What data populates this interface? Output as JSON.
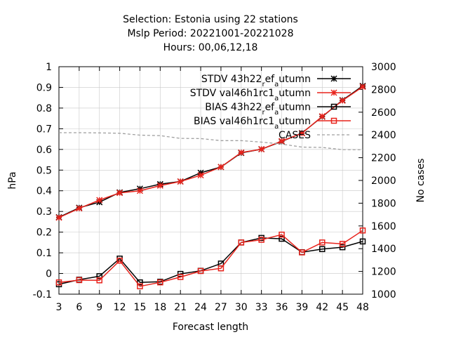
{
  "chart_data": {
    "type": "line",
    "title_lines": [
      "Selection: Estonia using     22 stations",
      "Mslp   Period: 20221001-20221028",
      "Hours:  00,06,12,18"
    ],
    "xlabel": "Forecast length",
    "ylabel": "hPa",
    "y2label": "No cases",
    "x": [
      3,
      6,
      9,
      12,
      15,
      18,
      21,
      24,
      27,
      30,
      33,
      36,
      39,
      42,
      45,
      48
    ],
    "xlim": [
      3,
      48
    ],
    "ylim": [
      -0.1,
      1.0
    ],
    "y2lim": [
      1000,
      3000
    ],
    "xticks": [
      "3",
      "6",
      "9",
      "12",
      "15",
      "18",
      "21",
      "24",
      "27",
      "30",
      "33",
      "36",
      "39",
      "42",
      "45",
      "48"
    ],
    "yticks": [
      "-0.1",
      "0",
      "0.1",
      "0.2",
      "0.3",
      "0.4",
      "0.5",
      "0.6",
      "0.7",
      "0.8",
      "0.9",
      "1"
    ],
    "y2ticks": [
      "1000",
      "1200",
      "1400",
      "1600",
      "1800",
      "2000",
      "2200",
      "2400",
      "2600",
      "2800",
      "3000"
    ],
    "legend_position": "top-right",
    "series": [
      {
        "name": "STDV 43h22_ref_autumn",
        "legend_parts": [
          [
            "STDV 43h22",
            0
          ],
          [
            "r",
            1
          ],
          [
            "ef",
            0
          ],
          [
            "a",
            1
          ],
          [
            "utumn",
            0
          ]
        ],
        "color": "#000000",
        "marker": "star",
        "axis": "y1",
        "values": [
          0.272,
          0.318,
          0.345,
          0.392,
          0.41,
          0.432,
          0.445,
          0.487,
          0.515,
          0.583,
          0.601,
          0.638,
          0.679,
          0.758,
          0.838,
          0.907
        ]
      },
      {
        "name": "STDV val46h1rc1_autumn",
        "legend_parts": [
          [
            "STDV val46h1rc1",
            0
          ],
          [
            "a",
            1
          ],
          [
            "utumn",
            0
          ]
        ],
        "color": "#e8231c",
        "marker": "star",
        "axis": "y1",
        "values": [
          0.27,
          0.315,
          0.355,
          0.39,
          0.4,
          0.425,
          0.445,
          0.475,
          0.515,
          0.585,
          0.601,
          0.64,
          0.678,
          0.76,
          0.836,
          0.903
        ]
      },
      {
        "name": "BIAS 43h22_ref_autumn",
        "legend_parts": [
          [
            "BIAS 43h22",
            0
          ],
          [
            "r",
            1
          ],
          [
            "ef",
            0
          ],
          [
            "a",
            1
          ],
          [
            "utumn",
            0
          ]
        ],
        "color": "#000000",
        "marker": "square",
        "axis": "y1",
        "values": [
          -0.052,
          -0.03,
          -0.013,
          0.072,
          -0.043,
          -0.04,
          -0.002,
          0.013,
          0.048,
          0.15,
          0.172,
          0.168,
          0.103,
          0.118,
          0.127,
          0.155
        ]
      },
      {
        "name": "BIAS val46h1rc1_autumn",
        "legend_parts": [
          [
            "BIAS val46h1rc1",
            0
          ],
          [
            "a",
            1
          ],
          [
            "utumn",
            0
          ]
        ],
        "color": "#e8231c",
        "marker": "square",
        "axis": "y1",
        "values": [
          -0.043,
          -0.032,
          -0.033,
          0.062,
          -0.062,
          -0.043,
          -0.017,
          0.012,
          0.025,
          0.15,
          0.163,
          0.188,
          0.102,
          0.15,
          0.143,
          0.208
        ]
      },
      {
        "name": "CASES",
        "legend_parts": [
          [
            "CASES",
            0
          ]
        ],
        "color": "#a0a0a0",
        "marker": "none",
        "dash": true,
        "axis": "y2",
        "values": [
          2420,
          2420,
          2418,
          2415,
          2398,
          2394,
          2370,
          2368,
          2350,
          2350,
          2337,
          2320,
          2293,
          2290,
          2271,
          2270
        ]
      }
    ]
  }
}
